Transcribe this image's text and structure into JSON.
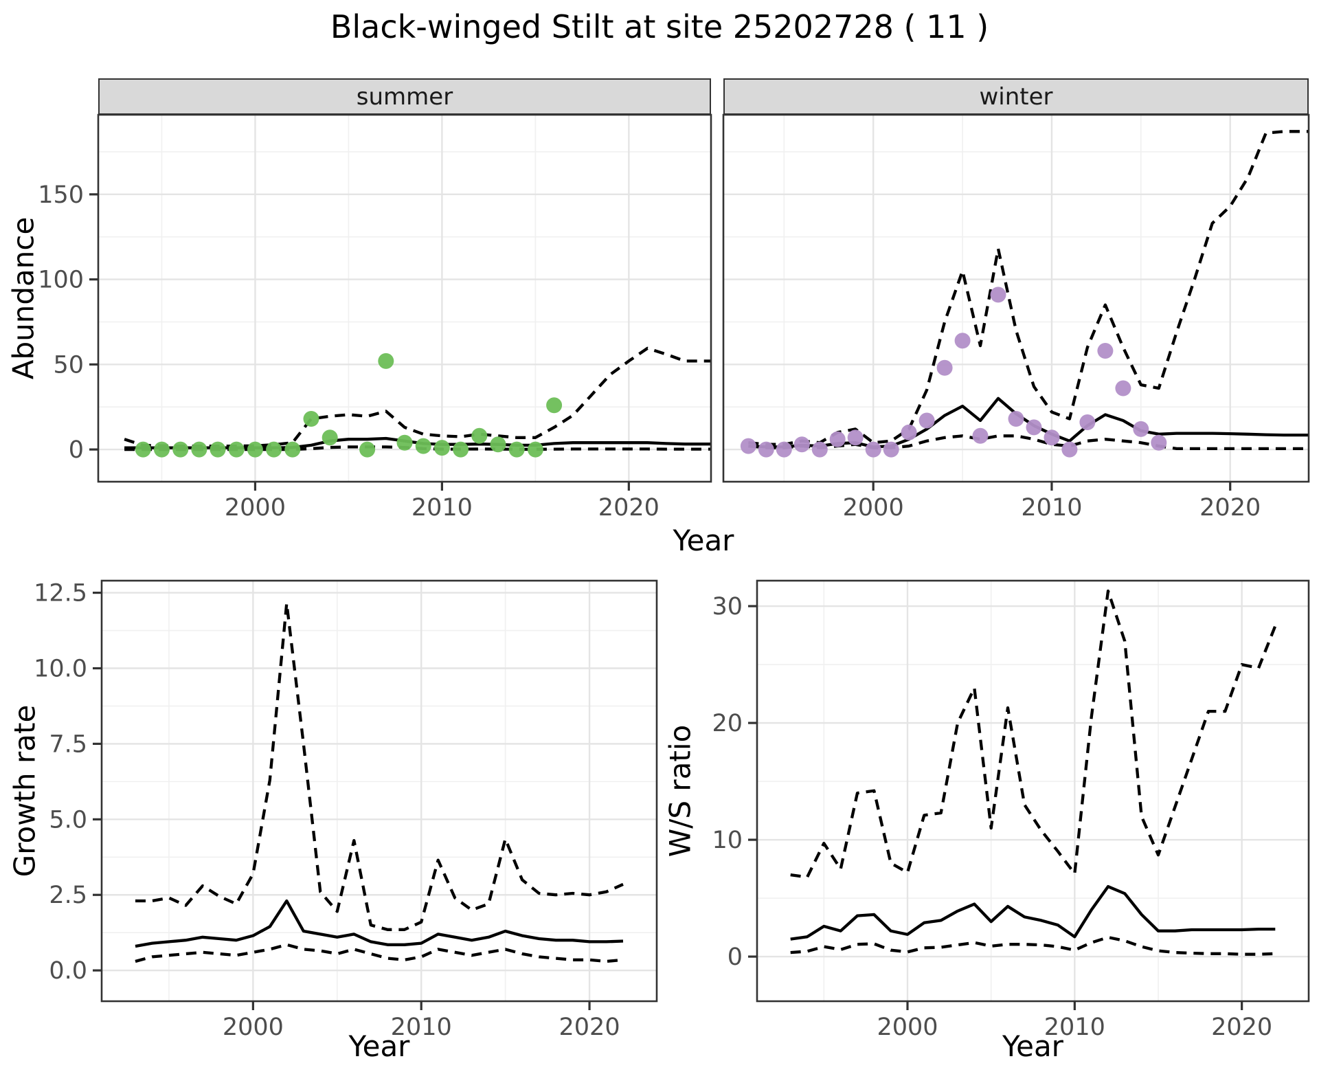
{
  "title": "Black-winged Stilt at site 25202728 ( 11 )",
  "facets": [
    {
      "label": "summer"
    },
    {
      "label": "winter"
    }
  ],
  "colors": {
    "summer_points": "#6DBE57",
    "winter_points": "#B28FC8",
    "line": "#000000",
    "grid_major": "#E4E4E4",
    "grid_minor": "#F0F0F0",
    "strip_fill": "#D9D9D9",
    "panel_border": "#333333",
    "tick_text": "#4D4D4D",
    "tick_mark": "#333333"
  },
  "chart_data": [
    {
      "id": "abundance-summer",
      "type": "line",
      "facet": "summer",
      "xlabel": "Year",
      "ylabel": "Abundance",
      "xlim": [
        1991.6,
        2024.4
      ],
      "ylim": [
        -18.95,
        196.8
      ],
      "x_ticks": [
        2000,
        2010,
        2020
      ],
      "x_minor": [
        1995,
        2005,
        2015
      ],
      "y_ticks": {
        "values": [
          0,
          50,
          100,
          150
        ],
        "labels": [
          "0",
          "50",
          "100",
          "150"
        ]
      },
      "y_minor": [
        25,
        75,
        125,
        175
      ],
      "extend_right": true,
      "years": [
        1993,
        1994,
        1995,
        1996,
        1997,
        1998,
        1999,
        2000,
        2001,
        2002,
        2003,
        2004,
        2005,
        2006,
        2007,
        2008,
        2009,
        2010,
        2011,
        2012,
        2013,
        2014,
        2015,
        2016,
        2017,
        2018,
        2019,
        2020,
        2021,
        2022,
        2023
      ],
      "series": [
        {
          "name": "fit",
          "style": "solid",
          "values": [
            1,
            1,
            1,
            1,
            1,
            1,
            1,
            1,
            1,
            1.2,
            2.5,
            5,
            6,
            6,
            6.5,
            5,
            3.5,
            3,
            3,
            3.2,
            3,
            2.5,
            2.5,
            3.5,
            4,
            4,
            4,
            4,
            4,
            3.5,
            3.2
          ]
        },
        {
          "name": "upper-ci",
          "style": "dashed",
          "values": [
            6,
            2.5,
            2.2,
            2,
            2,
            2,
            2,
            2.2,
            2.8,
            4,
            18,
            19.5,
            20.5,
            19.5,
            22.5,
            13,
            9,
            8,
            7.5,
            9,
            8,
            7,
            7,
            13,
            20,
            32,
            44,
            52,
            59.5,
            56,
            52
          ]
        },
        {
          "name": "lower-ci",
          "style": "dashed",
          "values": [
            0,
            0,
            0,
            0,
            0,
            0,
            0,
            0,
            0,
            0,
            0.5,
            1.2,
            1.5,
            1.5,
            1.5,
            1.2,
            0.5,
            0.2,
            0.2,
            0.3,
            0.2,
            0.1,
            0.1,
            0.2,
            0.3,
            0.3,
            0.3,
            0.3,
            0.3,
            0.2,
            0.2
          ]
        }
      ],
      "point_color_key": "summer_points",
      "points": [
        [
          1994,
          0
        ],
        [
          1995,
          0
        ],
        [
          1996,
          0
        ],
        [
          1997,
          0
        ],
        [
          1998,
          0
        ],
        [
          1999,
          0
        ],
        [
          2000,
          0
        ],
        [
          2001,
          0
        ],
        [
          2002,
          0
        ],
        [
          2003,
          18
        ],
        [
          2004,
          7
        ],
        [
          2006,
          0
        ],
        [
          2007,
          52
        ],
        [
          2008,
          4
        ],
        [
          2009,
          2
        ],
        [
          2010,
          1
        ],
        [
          2011,
          0
        ],
        [
          2012,
          8
        ],
        [
          2013,
          3
        ],
        [
          2014,
          0
        ],
        [
          2015,
          0
        ],
        [
          2016,
          26
        ]
      ]
    },
    {
      "id": "abundance-winter",
      "type": "line",
      "facet": "winter",
      "xlabel": "Year",
      "ylabel": "Abundance",
      "xlim": [
        1991.6,
        2024.4
      ],
      "ylim": [
        -18.95,
        196.8
      ],
      "x_ticks": [
        2000,
        2010,
        2020
      ],
      "x_minor": [
        1995,
        2005,
        2015
      ],
      "y_ticks": {
        "values": [
          0,
          50,
          100,
          150
        ],
        "labels": [
          "0",
          "50",
          "100",
          "150"
        ]
      },
      "y_minor": [
        25,
        75,
        125,
        175
      ],
      "extend_right": true,
      "years": [
        1993,
        1994,
        1995,
        1996,
        1997,
        1998,
        1999,
        2000,
        2001,
        2002,
        2003,
        2004,
        2005,
        2006,
        2007,
        2008,
        2009,
        2010,
        2011,
        2012,
        2013,
        2014,
        2015,
        2016,
        2017,
        2018,
        2019,
        2020,
        2021,
        2022,
        2023
      ],
      "series": [
        {
          "name": "fit",
          "style": "solid",
          "values": [
            2,
            1.5,
            1.5,
            2.5,
            2,
            3.5,
            4,
            1.5,
            2,
            6,
            12,
            20,
            25.5,
            17,
            30,
            21,
            14,
            9,
            5,
            14,
            20.5,
            17,
            11,
            9,
            9.5,
            9.5,
            9.5,
            9.3,
            9,
            8.7,
            8.5
          ]
        },
        {
          "name": "upper-ci",
          "style": "dashed",
          "values": [
            4,
            3,
            3,
            5,
            4,
            10,
            12,
            4,
            5,
            12,
            35,
            75,
            105,
            61,
            118,
            70,
            37,
            22,
            18,
            60,
            85,
            60,
            38,
            36,
            69,
            100,
            133,
            143,
            160,
            186,
            187
          ]
        },
        {
          "name": "lower-ci",
          "style": "dashed",
          "values": [
            2,
            1,
            1,
            2,
            1,
            2,
            3,
            1,
            1,
            2,
            5,
            7,
            8,
            6,
            8,
            8,
            6,
            3,
            2,
            5,
            6,
            5,
            4,
            2,
            0.5,
            0.5,
            0.5,
            0.5,
            0.5,
            0.5,
            0.5
          ]
        }
      ],
      "point_color_key": "winter_points",
      "points": [
        [
          1993,
          2
        ],
        [
          1994,
          0
        ],
        [
          1995,
          0
        ],
        [
          1996,
          3
        ],
        [
          1997,
          0
        ],
        [
          1998,
          6
        ],
        [
          1999,
          7
        ],
        [
          2000,
          0
        ],
        [
          2001,
          0
        ],
        [
          2002,
          10
        ],
        [
          2003,
          17
        ],
        [
          2004,
          48
        ],
        [
          2005,
          64
        ],
        [
          2006,
          8
        ],
        [
          2007,
          91
        ],
        [
          2008,
          18
        ],
        [
          2009,
          13
        ],
        [
          2010,
          7
        ],
        [
          2011,
          0
        ],
        [
          2012,
          16
        ],
        [
          2013,
          58
        ],
        [
          2014,
          36
        ],
        [
          2015,
          12
        ],
        [
          2016,
          4
        ]
      ]
    },
    {
      "id": "growth-rate",
      "type": "line",
      "xlabel": "Year",
      "ylabel": "Growth rate",
      "xlim": [
        1991.0,
        2024.0
      ],
      "ylim": [
        -1.02,
        12.9
      ],
      "x_ticks": [
        2000,
        2010,
        2020
      ],
      "x_minor": [
        1995,
        2005,
        2015
      ],
      "y_ticks": {
        "values": [
          0,
          2.5,
          5,
          7.5,
          10,
          12.5
        ],
        "labels": [
          "0.0",
          "2.5",
          "5.0",
          "7.5",
          "10.0",
          "12.5"
        ]
      },
      "y_minor": [
        1.25,
        3.75,
        6.25,
        8.75,
        11.25
      ],
      "extend_right": false,
      "years": [
        1993,
        1994,
        1995,
        1996,
        1997,
        1998,
        1999,
        2000,
        2001,
        2002,
        2003,
        2004,
        2005,
        2006,
        2007,
        2008,
        2009,
        2010,
        2011,
        2012,
        2013,
        2014,
        2015,
        2016,
        2017,
        2018,
        2019,
        2020,
        2021,
        2022
      ],
      "series": [
        {
          "name": "fit",
          "style": "solid",
          "values": [
            0.8,
            0.9,
            0.95,
            1,
            1.1,
            1.05,
            1,
            1.15,
            1.45,
            2.3,
            1.3,
            1.2,
            1.1,
            1.2,
            0.95,
            0.85,
            0.85,
            0.9,
            1.2,
            1.1,
            1,
            1.1,
            1.3,
            1.15,
            1.05,
            1,
            1,
            0.95,
            0.95,
            0.97
          ]
        },
        {
          "name": "upper-ci",
          "style": "dashed",
          "values": [
            2.3,
            2.3,
            2.4,
            2.15,
            2.8,
            2.45,
            2.2,
            3.2,
            6.3,
            12.15,
            7.5,
            2.6,
            1.95,
            4.3,
            1.5,
            1.35,
            1.35,
            1.6,
            3.65,
            2.4,
            2,
            2.2,
            4.35,
            3,
            2.55,
            2.5,
            2.55,
            2.5,
            2.6,
            2.85
          ]
        },
        {
          "name": "lower-ci",
          "style": "dashed",
          "values": [
            0.3,
            0.45,
            0.5,
            0.55,
            0.6,
            0.55,
            0.5,
            0.6,
            0.7,
            0.85,
            0.7,
            0.65,
            0.55,
            0.7,
            0.55,
            0.4,
            0.35,
            0.45,
            0.7,
            0.6,
            0.5,
            0.6,
            0.7,
            0.55,
            0.45,
            0.4,
            0.35,
            0.35,
            0.3,
            0.35
          ]
        }
      ],
      "points": []
    },
    {
      "id": "ws-ratio",
      "type": "line",
      "xlabel": "Year",
      "ylabel": "W/S ratio",
      "xlim": [
        1991.0,
        2024.0
      ],
      "ylim": [
        -3.82,
        32.18
      ],
      "x_ticks": [
        2000,
        2010,
        2020
      ],
      "x_minor": [
        1995,
        2005,
        2015
      ],
      "y_ticks": {
        "values": [
          0,
          10,
          20,
          30
        ],
        "labels": [
          "0",
          "10",
          "20",
          "30"
        ]
      },
      "y_minor": [
        5,
        15,
        25
      ],
      "extend_right": false,
      "years": [
        1993,
        1994,
        1995,
        1996,
        1997,
        1998,
        1999,
        2000,
        2001,
        2002,
        2003,
        2004,
        2005,
        2006,
        2007,
        2008,
        2009,
        2010,
        2011,
        2012,
        2013,
        2014,
        2015,
        2016,
        2017,
        2018,
        2019,
        2020,
        2021,
        2022
      ],
      "series": [
        {
          "name": "fit",
          "style": "solid",
          "values": [
            1.5,
            1.7,
            2.6,
            2.2,
            3.5,
            3.6,
            2.2,
            1.9,
            2.9,
            3.1,
            3.9,
            4.5,
            3,
            4.3,
            3.4,
            3.1,
            2.7,
            1.7,
            4,
            6,
            5.4,
            3.6,
            2.2,
            2.2,
            2.3,
            2.3,
            2.3,
            2.3,
            2.35,
            2.35
          ]
        },
        {
          "name": "upper-ci",
          "style": "dashed",
          "values": [
            7,
            6.8,
            9.7,
            7.5,
            14,
            14.2,
            8,
            7.2,
            12.1,
            12.3,
            20,
            23,
            11,
            21.3,
            13,
            10.8,
            9,
            7.1,
            20.5,
            31.3,
            27,
            12,
            8.7,
            12.8,
            16.9,
            21,
            21,
            25,
            24.7,
            28.3
          ]
        },
        {
          "name": "lower-ci",
          "style": "dashed",
          "values": [
            0.35,
            0.45,
            0.85,
            0.6,
            1.05,
            1.1,
            0.55,
            0.4,
            0.75,
            0.8,
            1,
            1.2,
            0.9,
            1.05,
            1.05,
            1,
            0.85,
            0.55,
            1.2,
            1.65,
            1.35,
            0.85,
            0.5,
            0.35,
            0.3,
            0.25,
            0.25,
            0.2,
            0.2,
            0.25
          ]
        }
      ],
      "points": []
    }
  ]
}
